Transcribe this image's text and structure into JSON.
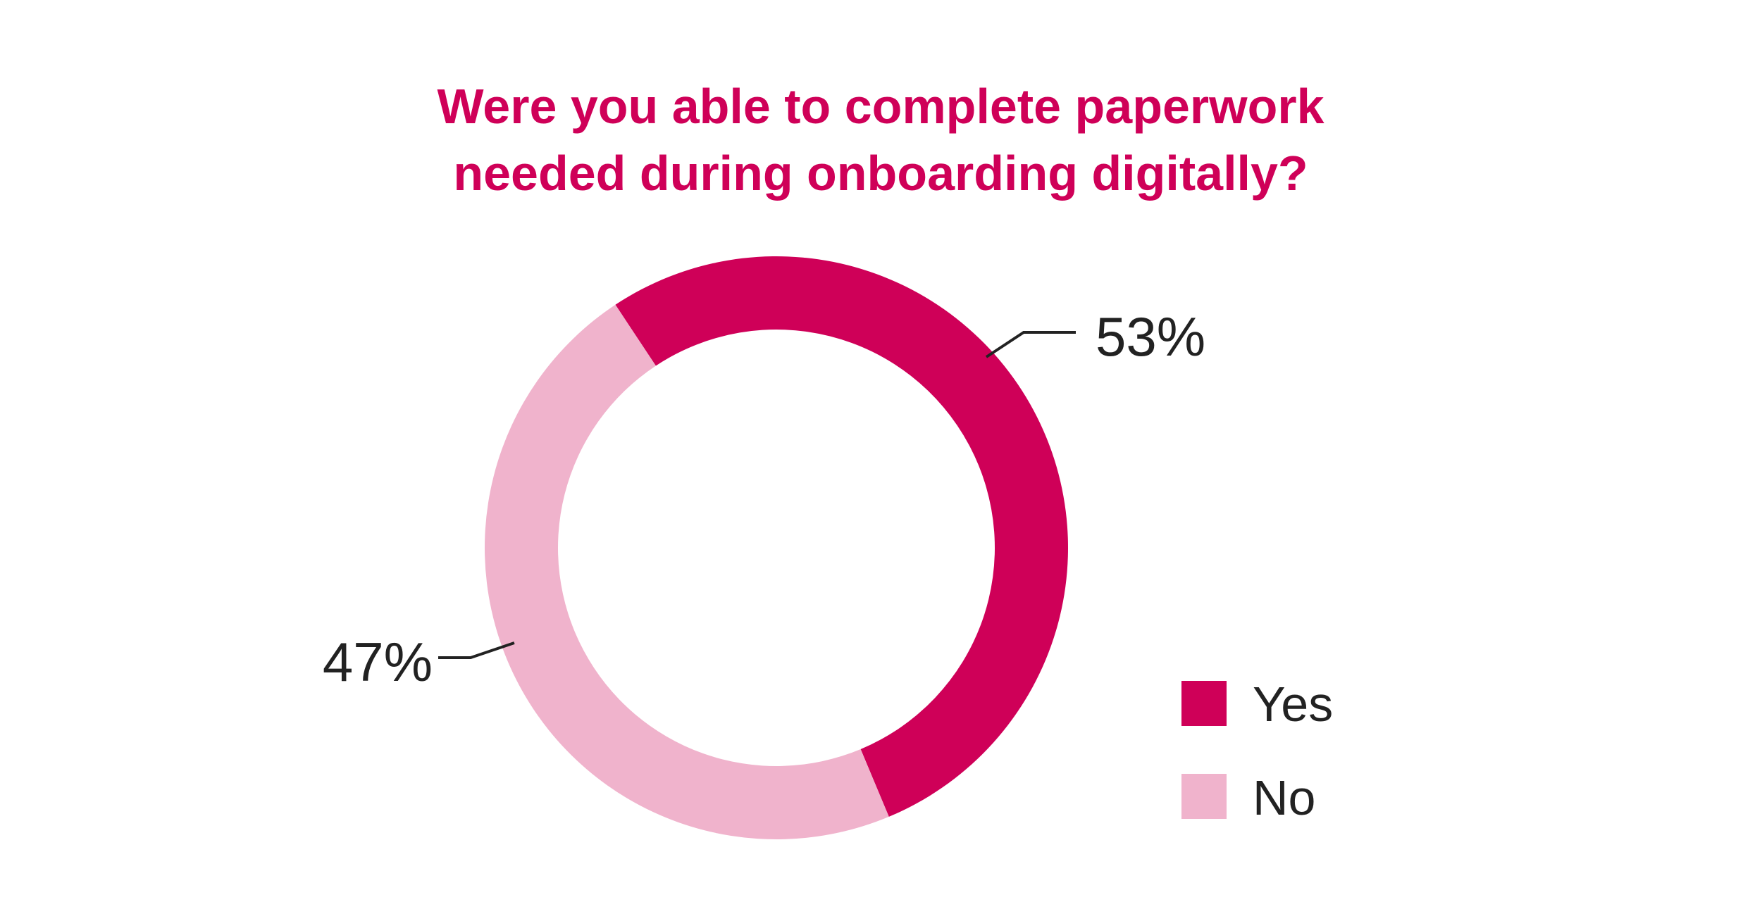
{
  "chart_data": {
    "type": "pie",
    "subtype": "donut",
    "title_lines": [
      "Were you able to complete paperwork",
      "needed during onboarding digitally?"
    ],
    "slices": [
      {
        "name": "Yes",
        "value": 53,
        "label": "53%",
        "color": "#cf0058"
      },
      {
        "name": "No",
        "value": 47,
        "label": "47%",
        "color": "#f0b3cc"
      }
    ],
    "legend": {
      "placement": "bottom-right",
      "items": [
        {
          "label": "Yes",
          "color": "#cf0058"
        },
        {
          "label": "No",
          "color": "#f0b3cc"
        }
      ]
    },
    "title_color": "#cf0058",
    "leader_line_color": "#222222"
  }
}
